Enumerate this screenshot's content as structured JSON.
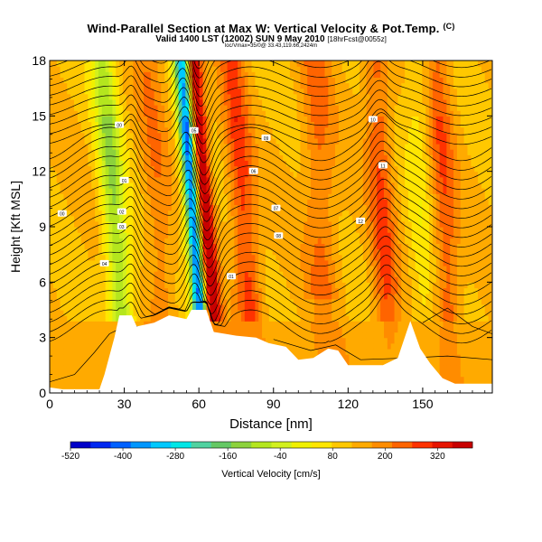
{
  "header": {
    "title": "Wind-Parallel Section at Max W: Vertical Velocity & Pot.Temp.",
    "copyright": "(C)",
    "valid_line": "Valid 1400 LST (1200Z) SUN 9 May 2010",
    "forecast_note": "[18hrFcst@0055z]",
    "subtitle_small": "loc/Vmax=35/0@ 33.43,119.66,2424m"
  },
  "colors": {
    "background": "#ffffff",
    "terrain": "#ffffff",
    "contour": "#000000",
    "scale": [
      "#0000c8",
      "#0028f0",
      "#0060ff",
      "#0096ff",
      "#00c8ff",
      "#00e6e6",
      "#50d2a0",
      "#64c864",
      "#8cd23c",
      "#b4e61e",
      "#d2f01e",
      "#f0f000",
      "#ffe600",
      "#ffc800",
      "#ffaa00",
      "#ff8c00",
      "#ff6400",
      "#ff3200",
      "#e61400",
      "#c80000"
    ]
  },
  "chart_data": {
    "type": "heatmap",
    "title": "Wind-Parallel Section at Max W: Vertical Velocity & Pot.Temp.",
    "xlabel": "Distance [nm]",
    "ylabel": "Height [Kft MSL]",
    "xlim": [
      0,
      178
    ],
    "ylim": [
      0,
      18
    ],
    "xticks": [
      0,
      30,
      60,
      90,
      120,
      150
    ],
    "yticks": [
      0,
      3,
      6,
      9,
      12,
      15,
      18
    ],
    "colorbar": {
      "label": "Vertical Velocity [cm/s]",
      "min": -520,
      "max": 400,
      "step": 40,
      "ticks": [
        -520,
        -400,
        -280,
        -160,
        -40,
        80,
        200,
        320
      ]
    },
    "field_features": [
      {
        "x": 28,
        "w": -200,
        "note": "downdraft band"
      },
      {
        "x": 60,
        "w": -520,
        "note": "strong downdraft"
      },
      {
        "x": 64,
        "w": 360,
        "note": "strong updraft"
      },
      {
        "x": 80,
        "w": 140,
        "note": "updraft"
      },
      {
        "x": 135,
        "w": 120,
        "note": "updraft"
      },
      {
        "x": 160,
        "w": 110,
        "note": "updraft"
      }
    ],
    "terrain_profile": [
      [
        0,
        0.3
      ],
      [
        5,
        0.2
      ],
      [
        20,
        0.2
      ],
      [
        22,
        1.0
      ],
      [
        26,
        3.0
      ],
      [
        28,
        4.2
      ],
      [
        33,
        4.2
      ],
      [
        35,
        3.6
      ],
      [
        42,
        3.8
      ],
      [
        48,
        4.2
      ],
      [
        55,
        4.0
      ],
      [
        57,
        4.5
      ],
      [
        63,
        4.5
      ],
      [
        66,
        3.3
      ],
      [
        75,
        3.1
      ],
      [
        83,
        3.0
      ],
      [
        88,
        2.7
      ],
      [
        95,
        2.5
      ],
      [
        100,
        1.8
      ],
      [
        106,
        1.9
      ],
      [
        112,
        2.4
      ],
      [
        116,
        2.3
      ],
      [
        120,
        1.5
      ],
      [
        134,
        1.5
      ],
      [
        140,
        1.9
      ],
      [
        145,
        3.9
      ],
      [
        149,
        2.4
      ],
      [
        153,
        1.6
      ],
      [
        158,
        0.8
      ],
      [
        163,
        0.5
      ],
      [
        178,
        0.5
      ]
    ],
    "contour_labels": [
      "00",
      "01",
      "02",
      "03",
      "04",
      "05",
      "06",
      "07",
      "08",
      "09",
      "10",
      "11",
      "12"
    ]
  }
}
